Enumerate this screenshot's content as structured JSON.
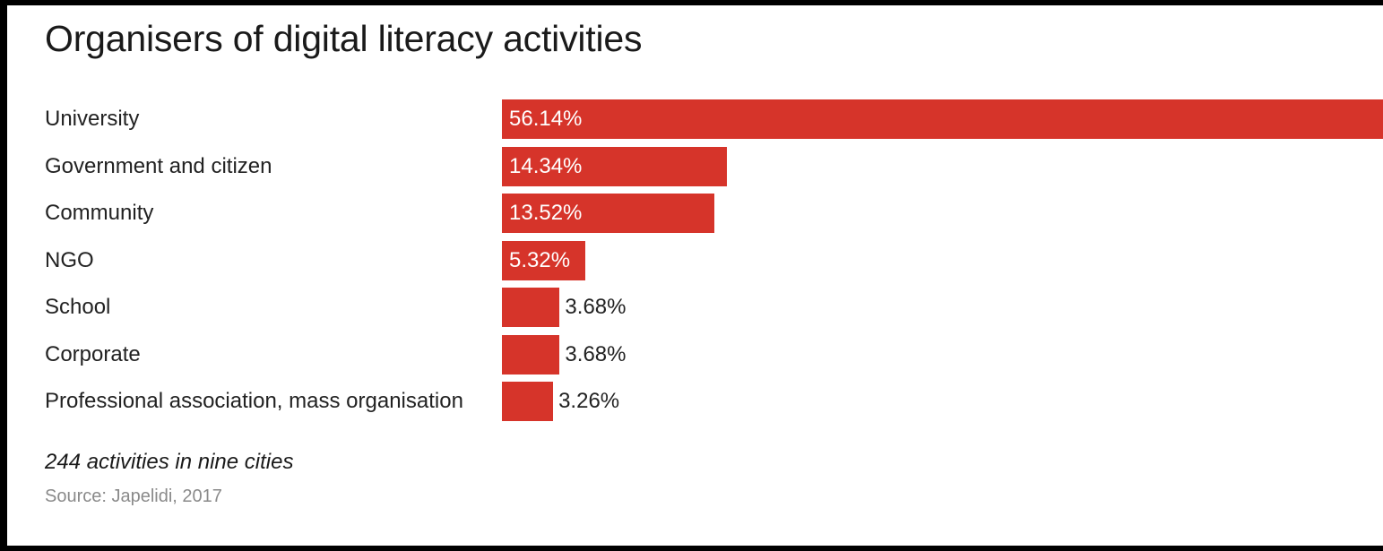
{
  "chart_data": {
    "type": "bar",
    "orientation": "horizontal",
    "title": "Organisers of digital literacy activities",
    "categories": [
      "University",
      "Government and citizen",
      "Community",
      "NGO",
      "School",
      "Corporate",
      "Professional association, mass organisation"
    ],
    "values": [
      56.14,
      14.34,
      13.52,
      5.32,
      3.68,
      3.68,
      3.26
    ],
    "value_labels": [
      "56.14%",
      "14.34%",
      "13.52%",
      "5.32%",
      "3.68%",
      "3.68%",
      "3.26%"
    ],
    "xlim": [
      0,
      56.14
    ],
    "grid": false,
    "legend": "none",
    "bar_color": "#d6342a",
    "note": "244 activities in nine cities",
    "source": "Source: Japelidi, 2017"
  }
}
